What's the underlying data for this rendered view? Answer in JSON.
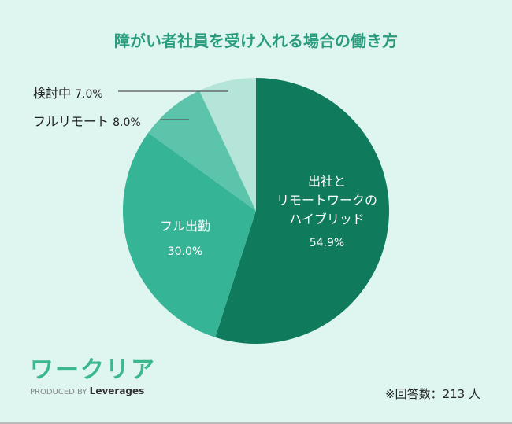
{
  "chart_data": {
    "type": "pie",
    "title": "障がい者社員を受け入れる場合の働き方",
    "start": "top",
    "direction": "clockwise",
    "slices": [
      {
        "label_lines": [
          "出社と",
          "リモートワークの",
          "ハイブリッド"
        ],
        "value": 54.9,
        "value_label": "54.9%",
        "color": "#0f7a5c"
      },
      {
        "label_lines": [
          "フル出勤"
        ],
        "value": 30.0,
        "value_label": "30.0%",
        "color": "#36b496"
      },
      {
        "label_lines": [
          "フルリモート"
        ],
        "value": 8.0,
        "value_label": "8.0%",
        "color": "#5cc4ab"
      },
      {
        "label_lines": [
          "検討中"
        ],
        "value": 7.0,
        "value_label": "7.0%",
        "color": "#b5e4d8"
      }
    ]
  },
  "footer": {
    "logo_text": "ワークリア",
    "produced_by": "PRODUCED BY",
    "brand": "Leverages",
    "note": "※回答数：213 人"
  },
  "colors": {
    "background": "#dff5f0",
    "title": "#2a9c7e"
  }
}
